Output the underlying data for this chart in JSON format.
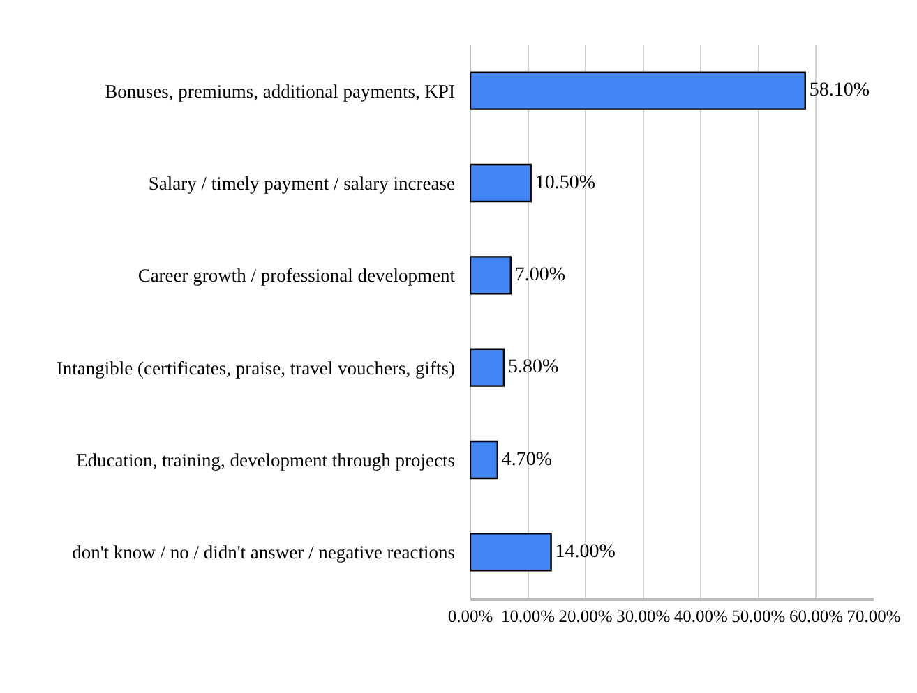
{
  "chart_data": {
    "type": "bar",
    "orientation": "horizontal",
    "categories": [
      "Bonuses, premiums, additional payments, KPI",
      "Salary / timely payment / salary increase",
      "Career growth / professional development",
      "Intangible (certificates, praise, travel vouchers, gifts)",
      "Education, training, development through projects",
      "don't know / no / didn't answer / negative reactions"
    ],
    "values": [
      58.1,
      10.5,
      7,
      5.8,
      4.7,
      14
    ],
    "value_labels": [
      "58.10%",
      "10.50%",
      "7.00%",
      "5.80%",
      "4.70%",
      "14.00%"
    ],
    "color": "#4285f4",
    "xlim": [
      0,
      70
    ],
    "xticks": [
      {
        "value": 0,
        "label": "0.00%"
      },
      {
        "value": 10,
        "label": "10.00%"
      },
      {
        "value": 20,
        "label": "20.00%"
      },
      {
        "value": 30,
        "label": "30.00%"
      },
      {
        "value": 40,
        "label": "40.00%"
      },
      {
        "value": 50,
        "label": "50.00%"
      },
      {
        "value": 60,
        "label": "60.00%"
      },
      {
        "value": 70,
        "label": "70.00%"
      }
    ],
    "grid": "x"
  }
}
